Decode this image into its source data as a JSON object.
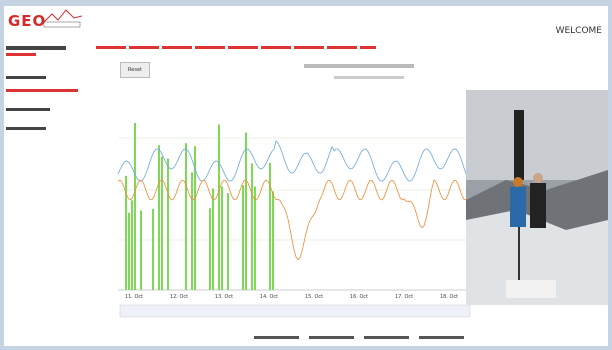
{
  "header": {
    "logo": "GEO",
    "welcome": "WELCOME"
  },
  "chart": {
    "reset_button": "Reset",
    "x_labels": [
      "11. Oct",
      "12. Oct",
      "13. Oct",
      "14. Oct",
      "15. Oct",
      "16. Oct",
      "17. Oct",
      "18. Oct"
    ]
  }
}
